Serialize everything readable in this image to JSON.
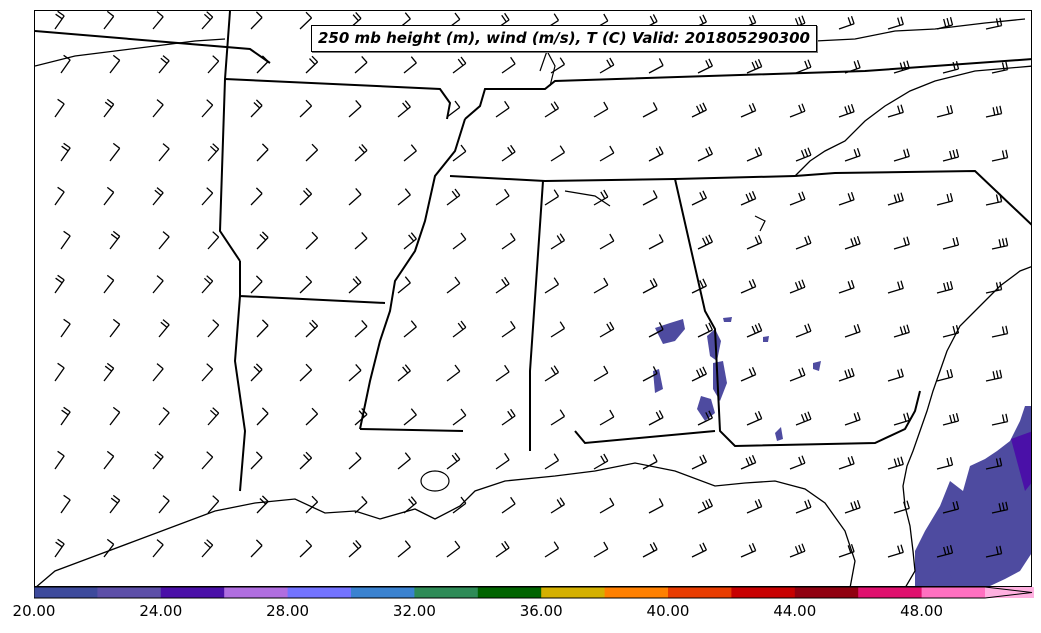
{
  "title": "250 mb height (m), wind (m/s), T (C) Valid: 201805290300",
  "colorbar": {
    "tick_labels": [
      "20.00",
      "24.00",
      "28.00",
      "32.00",
      "36.00",
      "40.00",
      "44.00",
      "48.00"
    ],
    "colors": [
      "#3d4a9c",
      "#5c4fa8",
      "#4a10a8",
      "#b06ee0",
      "#7373ff",
      "#3a82d0",
      "#2e8b57",
      "#006400",
      "#d4b000",
      "#ff8000",
      "#e83c00",
      "#c80000",
      "#900010",
      "#e0106e",
      "#ff70c0",
      "#ffb0e0"
    ],
    "extend": "max"
  },
  "colors": {
    "wind_contour_fill": "#4e4ba0",
    "wind_contour_dark": "#4a10a8",
    "boundaries": "#000000",
    "barbs": "#000000"
  }
}
